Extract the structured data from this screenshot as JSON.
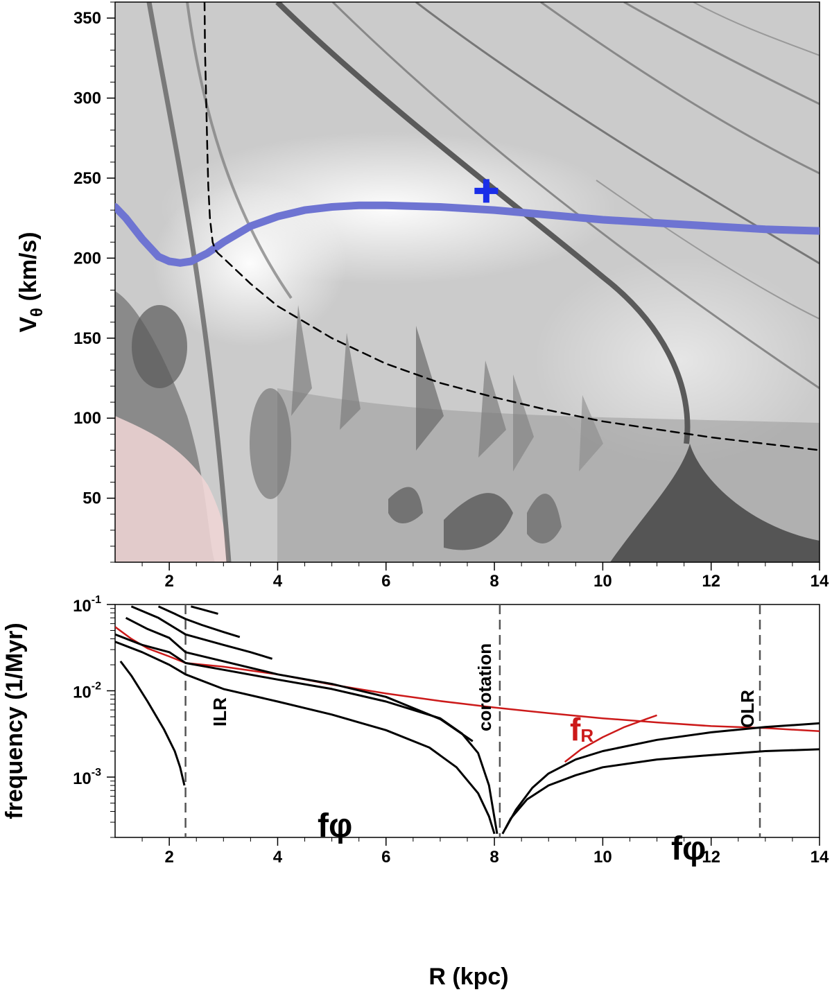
{
  "chart_data": [
    {
      "type": "heatmap",
      "xlabel": "",
      "ylabel": "Vθ (km/s)",
      "ylabel_main": "V",
      "ylabel_sub": "θ",
      "ylabel_rest": " (km/s)",
      "xlim": [
        1,
        14
      ],
      "ylim": [
        10,
        360
      ],
      "xticks": [
        "2",
        "4",
        "6",
        "8",
        "10",
        "12",
        "14"
      ],
      "yticks": [
        "50",
        "100",
        "150",
        "200",
        "250",
        "300",
        "350"
      ],
      "colors": {
        "background": "#c8c8c8",
        "rotation_curve": "#6e74d2",
        "marker": "#1a2ee8",
        "dashed": "#000000",
        "chaotic": "#f0cccc"
      },
      "series": [
        {
          "style": "solid-blue-thick",
          "x": [
            1.0,
            1.2,
            1.5,
            1.8,
            2.0,
            2.2,
            2.4,
            2.7,
            3.0,
            3.5,
            4.0,
            4.5,
            5.0,
            5.5,
            6.0,
            7.0,
            8.0,
            9.0,
            10.0,
            11.0,
            12.0,
            13.0,
            14.0
          ],
          "values": [
            232,
            225,
            212,
            201,
            198,
            197,
            198,
            203,
            210,
            220,
            226,
            230,
            232,
            233,
            233,
            232,
            230,
            227,
            224,
            222,
            220,
            218,
            217
          ]
        },
        {
          "style": "dashed-black",
          "x": [
            2.65,
            2.66,
            2.68,
            2.7,
            2.72,
            2.75,
            2.8,
            2.85,
            2.9,
            3.0,
            3.5,
            4.0,
            5.0,
            6.0,
            7.0,
            8.0,
            9.0,
            10.0,
            11.0,
            12.0,
            13.0,
            14.0
          ],
          "values": [
            360,
            330,
            300,
            270,
            245,
            225,
            210,
            205,
            203,
            200,
            184,
            170,
            150,
            134,
            122,
            113,
            105,
            98,
            93,
            88,
            84,
            80
          ]
        }
      ],
      "markers": [
        {
          "symbol": "+",
          "x": 7.85,
          "y": 242
        }
      ]
    },
    {
      "type": "line",
      "xlabel": "R (kpc)",
      "ylabel": "frequency (1/Myr)",
      "yscale": "log",
      "xlim": [
        1,
        14
      ],
      "ylim": [
        0.0002,
        0.1
      ],
      "xticks": [
        "2",
        "4",
        "6",
        "8",
        "10",
        "12",
        "14"
      ],
      "yticks": [
        {
          "base": "10",
          "exp": "-1"
        },
        {
          "base": "10",
          "exp": "-2"
        },
        {
          "base": "10",
          "exp": "-3"
        }
      ],
      "vlines": [
        {
          "x": 2.3,
          "label": "ILR"
        },
        {
          "x": 8.1,
          "label": "corotation"
        },
        {
          "x": 12.9,
          "label": "OLR"
        }
      ],
      "annotations": [
        {
          "text": "f",
          "sub": "R",
          "color": "#cc1a1a"
        },
        {
          "text": "fφ",
          "color": "#000000"
        },
        {
          "text": "fφ",
          "color": "#000000"
        }
      ],
      "series": [
        {
          "color": "#cc1a1a",
          "x": [
            1.0,
            1.3,
            1.6,
            2.0,
            2.3,
            3.0,
            4.0,
            5.0,
            6.0,
            7.0,
            8.0,
            9.0,
            10.0,
            11.0,
            12.0,
            13.0,
            14.0
          ],
          "values": [
            0.055,
            0.04,
            0.031,
            0.025,
            0.021,
            0.019,
            0.0155,
            0.0118,
            0.0093,
            0.0076,
            0.0064,
            0.0055,
            0.0048,
            0.0043,
            0.0039,
            0.0037,
            0.0034
          ]
        },
        {
          "color": "#cc1a1a",
          "x": [
            9.3,
            9.6,
            10.0,
            10.4,
            10.8,
            11.0
          ],
          "values": [
            0.0015,
            0.0021,
            0.0029,
            0.0038,
            0.0047,
            0.0052
          ]
        },
        {
          "color": "#000000",
          "x": [
            1.1,
            1.3,
            1.6,
            1.9,
            2.1,
            2.2,
            2.28
          ],
          "values": [
            0.022,
            0.015,
            0.0075,
            0.0036,
            0.002,
            0.0013,
            0.0008
          ]
        },
        {
          "color": "#000000",
          "x": [
            1.0,
            1.5,
            2.0,
            2.3,
            3.0,
            4.0,
            5.0,
            6.0,
            6.8,
            7.3,
            7.7,
            7.9,
            8.0
          ],
          "values": [
            0.037,
            0.028,
            0.02,
            0.0155,
            0.0105,
            0.0075,
            0.0053,
            0.0035,
            0.0022,
            0.0013,
            0.00065,
            0.00035,
            0.00022
          ]
        },
        {
          "color": "#000000",
          "x": [
            8.15,
            8.3,
            8.6,
            9.0,
            9.5,
            10.0,
            11.0,
            12.0,
            13.0,
            14.0
          ],
          "values": [
            0.00022,
            0.00033,
            0.00055,
            0.0008,
            0.00105,
            0.0013,
            0.0016,
            0.0018,
            0.002,
            0.0021
          ]
        },
        {
          "color": "#000000",
          "x": [
            1.0,
            1.5,
            2.0,
            2.3,
            3.0,
            4.0,
            5.0,
            6.0,
            7.0,
            7.4,
            7.7,
            7.9,
            8.05
          ],
          "values": [
            0.045,
            0.034,
            0.028,
            0.021,
            0.0175,
            0.0135,
            0.0105,
            0.0075,
            0.0048,
            0.0032,
            0.0019,
            0.0008,
            0.00022
          ]
        },
        {
          "color": "#000000",
          "x": [
            8.2,
            8.4,
            8.7,
            9.0,
            9.5,
            10.0,
            11.0,
            12.0,
            13.0,
            14.0
          ],
          "values": [
            0.00025,
            0.00042,
            0.00075,
            0.0011,
            0.0016,
            0.002,
            0.0027,
            0.0033,
            0.0038,
            0.0042
          ]
        },
        {
          "color": "#000000",
          "x": [
            1.2,
            1.6,
            2.0,
            2.3,
            3.0,
            4.0,
            5.0,
            6.0,
            7.0,
            7.6
          ],
          "values": [
            0.07,
            0.052,
            0.041,
            0.028,
            0.022,
            0.0155,
            0.012,
            0.0085,
            0.0047,
            0.0026
          ]
        },
        {
          "color": "#000000",
          "x": [
            1.3,
            1.8,
            2.3,
            3.0,
            3.5,
            3.9
          ],
          "values": [
            0.095,
            0.07,
            0.045,
            0.034,
            0.028,
            0.0235
          ]
        },
        {
          "color": "#000000",
          "x": [
            1.8,
            2.1,
            2.3,
            2.6,
            3.0,
            3.3
          ],
          "values": [
            0.095,
            0.078,
            0.068,
            0.058,
            0.048,
            0.042
          ]
        },
        {
          "color": "#000000",
          "x": [
            2.4,
            2.6,
            2.9
          ],
          "values": [
            0.095,
            0.088,
            0.078
          ]
        }
      ]
    }
  ]
}
